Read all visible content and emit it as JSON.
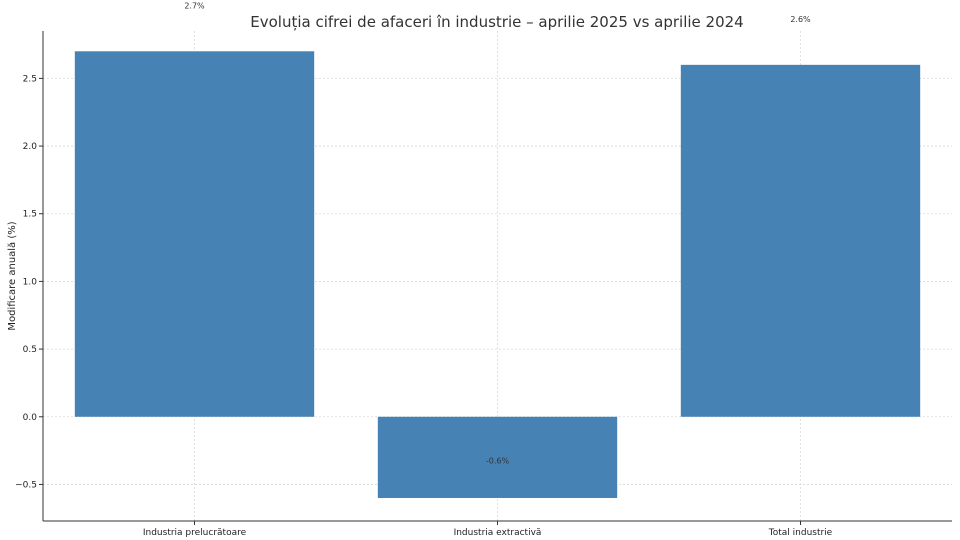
{
  "chart_data": {
    "type": "bar",
    "title": "Evoluția cifrei de afaceri în industrie – aprilie 2025 vs aprilie 2024",
    "xlabel": "",
    "ylabel": "Modificare anuală (%)",
    "categories": [
      "Industria prelucrătoare",
      "Industria extractivă",
      "Total industrie"
    ],
    "values": [
      2.7,
      -0.6,
      2.6
    ],
    "data_labels": [
      "2.7%",
      "-0.6%",
      "2.6%"
    ],
    "ylim": [
      -0.77,
      2.85
    ],
    "yticks": [
      -0.5,
      0.0,
      0.5,
      1.0,
      1.5,
      2.0,
      2.5
    ],
    "ytick_labels": [
      "−0.5",
      "0.0",
      "0.5",
      "1.0",
      "1.5",
      "2.0",
      "2.5"
    ],
    "grid": true,
    "bar_color": "#4682B4"
  }
}
